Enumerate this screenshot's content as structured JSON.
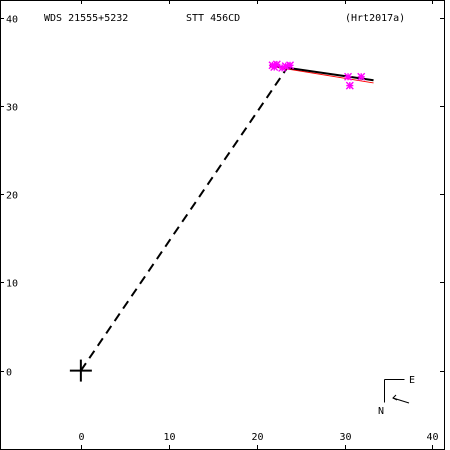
{
  "header": {
    "wds": "WDS 21555+5232",
    "discoverer": "STT 456CD",
    "reference": "(Hrt2017a)"
  },
  "compass": {
    "east": "E",
    "north": "N"
  },
  "colors": {
    "background": "#ffffff",
    "axes": "#000000",
    "observations": "#ff00ff",
    "fit_orbit": "#ff0000"
  },
  "chart_data": {
    "type": "scatter",
    "title": "",
    "xlabel": "",
    "ylabel": "",
    "xlim": [
      -9.2,
      42
    ],
    "ylim": [
      -9,
      42
    ],
    "x_reversed": false,
    "y_reversed": false,
    "x_ticks": [
      0,
      10,
      20,
      30,
      40
    ],
    "x_tick_labels": [
      "0",
      "10",
      "20",
      "30",
      "40"
    ],
    "y_ticks": [
      0,
      10,
      20,
      30,
      40
    ],
    "y_tick_labels": [
      "0",
      "10",
      "20",
      "30",
      "40"
    ],
    "grid": false,
    "primary": {
      "x": 0,
      "y": 0,
      "marker": "plus"
    },
    "observations": [
      {
        "x": 21.8,
        "y": 34.6
      },
      {
        "x": 22.0,
        "y": 34.4
      },
      {
        "x": 22.3,
        "y": 34.7
      },
      {
        "x": 22.9,
        "y": 34.3
      },
      {
        "x": 23.3,
        "y": 34.5
      },
      {
        "x": 23.8,
        "y": 34.6
      },
      {
        "x": 30.4,
        "y": 33.3
      },
      {
        "x": 30.6,
        "y": 32.3
      },
      {
        "x": 31.9,
        "y": 33.3
      }
    ],
    "fit_line": [
      {
        "x": 21.5,
        "y": 34.6
      },
      {
        "x": 33.3,
        "y": 32.9
      }
    ],
    "fit_line_red": [
      {
        "x": 21.5,
        "y": 34.5
      },
      {
        "x": 33.3,
        "y": 32.6
      }
    ],
    "dashed_link": [
      {
        "x": 0,
        "y": 0
      },
      {
        "x": 23.6,
        "y": 34.5
      }
    ]
  }
}
